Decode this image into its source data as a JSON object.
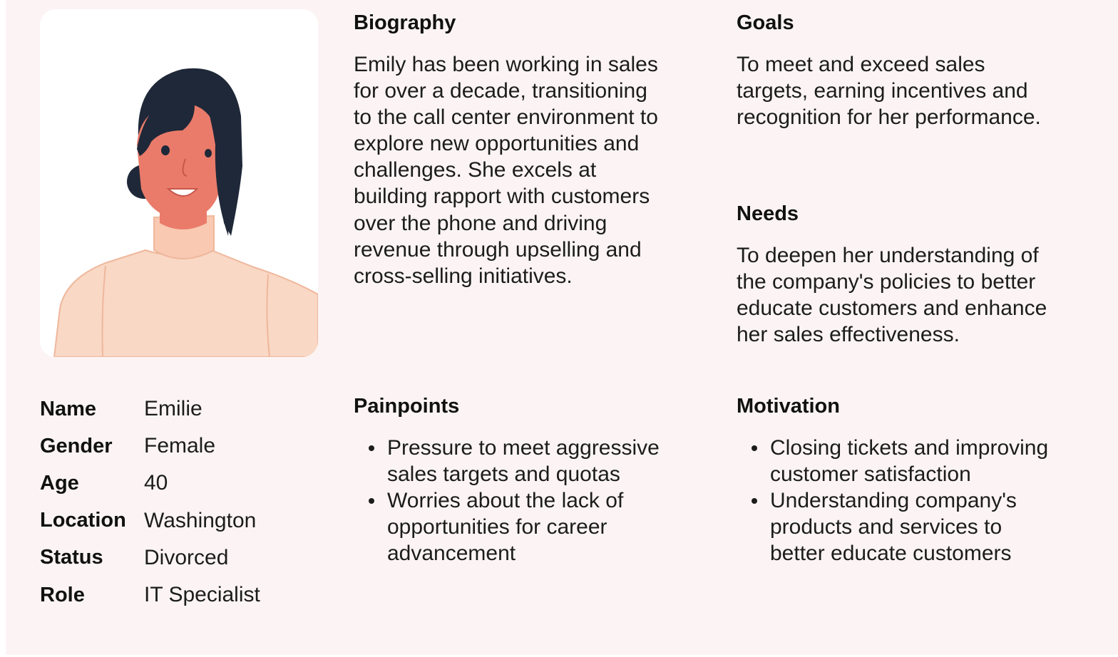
{
  "persona": {
    "portrait_alt": "illustrated avatar of a smiling woman with dark hair",
    "details": [
      {
        "label": "Name",
        "value": "Emilie"
      },
      {
        "label": "Gender",
        "value": "Female"
      },
      {
        "label": "Age",
        "value": "40"
      },
      {
        "label": "Location",
        "value": "Washington"
      },
      {
        "label": "Status",
        "value": "Divorced"
      },
      {
        "label": "Role",
        "value": "IT Specialist"
      }
    ]
  },
  "biography": {
    "title": "Biography",
    "lines": [
      "Emily has been working in sales",
      "for over a decade, transitioning",
      "to the call center environment to",
      "explore new opportunities and",
      "challenges. She excels at",
      "building rapport with customers",
      "over the phone and driving",
      "revenue through upselling and",
      "cross-selling initiatives."
    ]
  },
  "goals": {
    "title": "Goals",
    "lines": [
      "To meet and exceed sales",
      "targets, earning incentives and",
      "recognition for her performance."
    ]
  },
  "needs": {
    "title": "Needs",
    "lines": [
      "To deepen her understanding of",
      "the company's policies to better",
      "educate customers and enhance",
      "her sales effectiveness."
    ]
  },
  "painpoints": {
    "title": "Painpoints",
    "items": [
      [
        "Pressure to meet aggressive",
        "sales targets and quotas"
      ],
      [
        "Worries about the lack of",
        "opportunities for career",
        "advancement"
      ]
    ]
  },
  "motivation": {
    "title": "Motivation",
    "items": [
      [
        "Closing tickets and improving",
        "customer satisfaction"
      ],
      [
        "Understanding company's",
        "products and services to",
        "better educate customers"
      ]
    ]
  },
  "colors": {
    "background": "#fcf4f4",
    "card": "#ffffff",
    "hair": "#1f2838",
    "skin": "#ea7b6a",
    "sweater": "#f9d8c5",
    "text": "#1c1c1c"
  }
}
